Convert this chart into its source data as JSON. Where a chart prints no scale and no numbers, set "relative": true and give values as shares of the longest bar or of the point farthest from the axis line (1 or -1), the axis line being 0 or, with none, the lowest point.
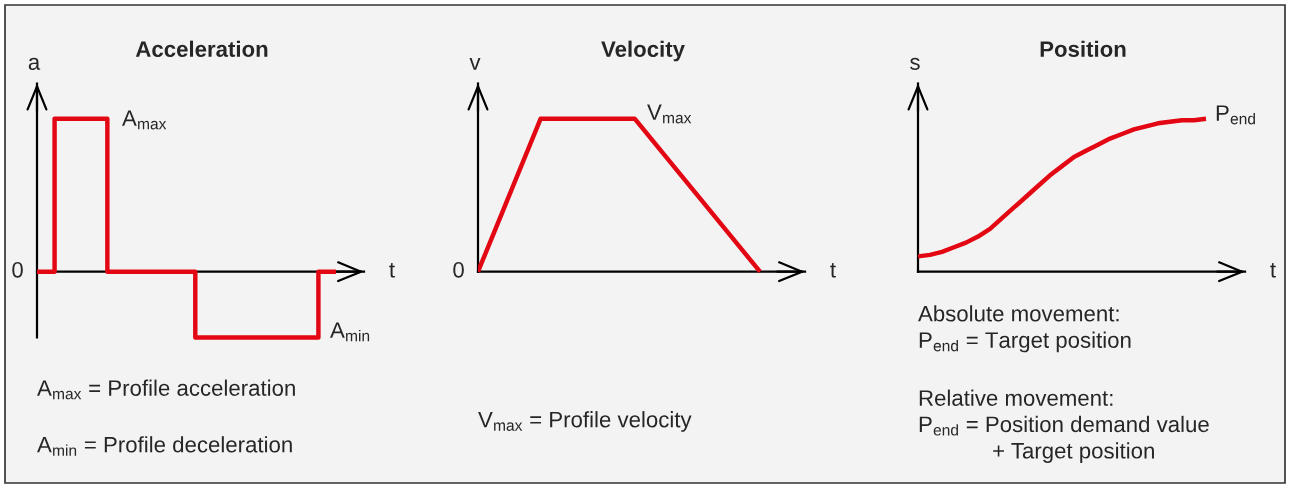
{
  "chart_data": [
    {
      "type": "step",
      "title": "Acceleration",
      "xlabel": "t",
      "ylabel": "a",
      "relative": true,
      "categories": [
        null,
        null,
        null,
        null,
        null,
        null,
        null,
        null,
        null,
        null,
        null,
        null,
        null,
        null,
        null,
        null,
        null,
        null
      ],
      "values": [
        0,
        1,
        1,
        1,
        0,
        0,
        0,
        0,
        0,
        -0.43,
        -0.43,
        -0.43,
        -0.43,
        -0.43,
        -0.43,
        -0.43,
        0,
        0
      ],
      "color": "#e30613",
      "annotations": [
        "0",
        "A$_{max}$",
        "A$_{min}$",
        "A$_{max}$ = Profile acceleration",
        "A$_{min}$ = Profile deceleration"
      ]
    },
    {
      "type": "line",
      "title": "Velocity",
      "xlabel": "t",
      "ylabel": "v",
      "relative": true,
      "categories": [
        null,
        null,
        null,
        null,
        null,
        null,
        null,
        null,
        null,
        null
      ],
      "values": [
        0,
        0.5,
        1,
        1,
        1,
        1,
        0.75,
        0.5,
        0.25,
        0
      ],
      "color": "#e30613",
      "annotations": [
        "0",
        "V$_{max}$",
        "V$_{max}$ = Profile velocity"
      ]
    },
    {
      "type": "line",
      "title": "Position",
      "xlabel": "t",
      "ylabel": "s",
      "relative": true,
      "categories": [
        null,
        null,
        null,
        null,
        null,
        null,
        null,
        null,
        null,
        null,
        null,
        null,
        null,
        null,
        null,
        null,
        null,
        null,
        null,
        null,
        null,
        null,
        null,
        null,
        null
      ],
      "values": [
        0.1,
        0.11,
        0.13,
        0.16,
        0.19,
        0.23,
        0.28,
        0.35,
        0.42,
        0.49,
        0.56,
        0.63,
        0.69,
        0.75,
        0.79,
        0.83,
        0.87,
        0.9,
        0.93,
        0.95,
        0.97,
        0.98,
        0.99,
        0.99,
        1
      ],
      "color": "#e30613",
      "annotations": [
        "P$_{end}$",
        "Absolute movement:\nP$_{end}$ = Target position",
        "Relative movement:\nP$_{end}$ = Position demand value\n            + Target position"
      ]
    }
  ]
}
